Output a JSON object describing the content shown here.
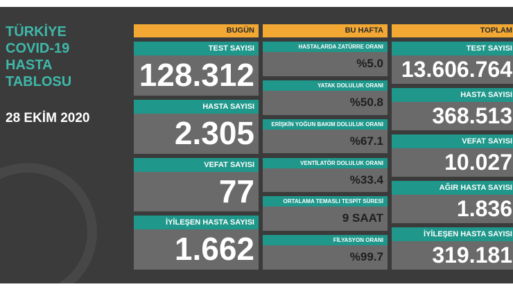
{
  "header": {
    "title_lines": [
      "TÜRKİYE",
      "COVID-19",
      "HASTA",
      "TABLOSU"
    ],
    "date": "28 EKİM 2020"
  },
  "columns": [
    {
      "heading": "BUGÜN",
      "items": [
        {
          "label": "TEST SAYISI",
          "value": "128.312"
        },
        {
          "label": "HASTA SAYISI",
          "value": "2.305"
        },
        {
          "label": "VEFAT SAYISI",
          "value": "77"
        },
        {
          "label": "İYİLEŞEN HASTA SAYISI",
          "value": "1.662"
        }
      ]
    },
    {
      "heading": "BU HAFTA",
      "items": [
        {
          "label": "HASTALARDA ZATÜRRE ORANI",
          "value": "%5.0"
        },
        {
          "label": "YATAK DOLULUK ORANI",
          "value": "%50.8"
        },
        {
          "label": "ERİŞKİN YOĞUN BAKIM DOLULUK ORANI",
          "value": "%67.1"
        },
        {
          "label": "VENTİLATÖR DOLULUK ORANI",
          "value": "%33.4"
        },
        {
          "label": "ORTALAMA TEMASLI TESPİT SÜRESİ",
          "value": "9 SAAT"
        },
        {
          "label": "FİLYASYON ORANI",
          "value": "%99.7"
        }
      ]
    },
    {
      "heading": "TOPLAM",
      "items": [
        {
          "label": "TEST SAYISI",
          "value": "13.606.764"
        },
        {
          "label": "HASTA SAYISI",
          "value": "368.513"
        },
        {
          "label": "VEFAT SAYISI",
          "value": "10.027"
        },
        {
          "label": "AĞIR HASTA SAYISI",
          "value": "1.836"
        },
        {
          "label": "İYİLEŞEN HASTA SAYISI",
          "value": "319.181"
        }
      ]
    }
  ]
}
